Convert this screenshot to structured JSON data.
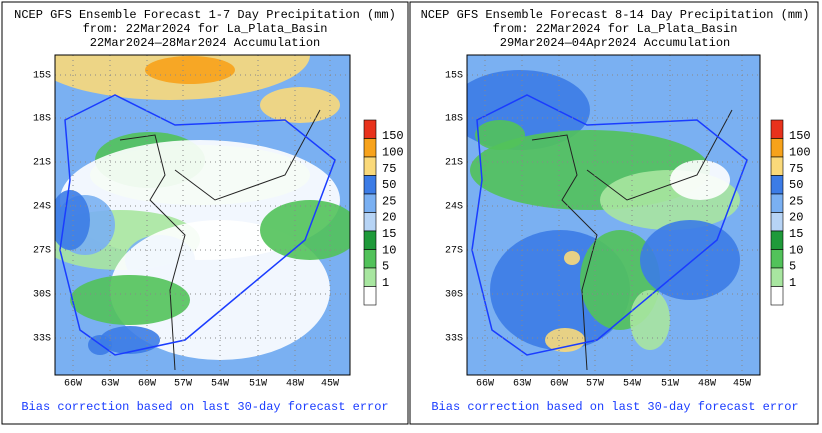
{
  "panels": [
    {
      "title_lines": [
        "NCEP GFS Ensemble Forecast 1-7 Day Precipitation (mm)",
        "from: 22Mar2024   for La_Plata_Basin",
        "22Mar2024—28Mar2024 Accumulation"
      ],
      "lat_labels": [
        "15S",
        "18S",
        "21S",
        "24S",
        "27S",
        "30S",
        "33S"
      ],
      "lon_labels": [
        "66W",
        "63W",
        "60W",
        "57W",
        "54W",
        "51W",
        "48W",
        "45W"
      ],
      "legend": [
        "150",
        "100",
        "75",
        "50",
        "25",
        "20",
        "15",
        "10",
        "5",
        "1"
      ],
      "footer": "Bias correction based on last 30-day forecast error"
    },
    {
      "title_lines": [
        "NCEP GFS Ensemble Forecast 8-14 Day Precipitation (mm)",
        "from: 22Mar2024   for La_Plata_Basin",
        "29Mar2024—04Apr2024 Accumulation"
      ],
      "lat_labels": [
        "15S",
        "18S",
        "21S",
        "24S",
        "27S",
        "30S",
        "33S"
      ],
      "lon_labels": [
        "66W",
        "63W",
        "60W",
        "57W",
        "54W",
        "51W",
        "48W",
        "45W"
      ],
      "legend": [
        "150",
        "100",
        "75",
        "50",
        "25",
        "20",
        "15",
        "10",
        "5",
        "1"
      ],
      "footer": "Bias correction based on last 30-day forecast error"
    }
  ]
}
